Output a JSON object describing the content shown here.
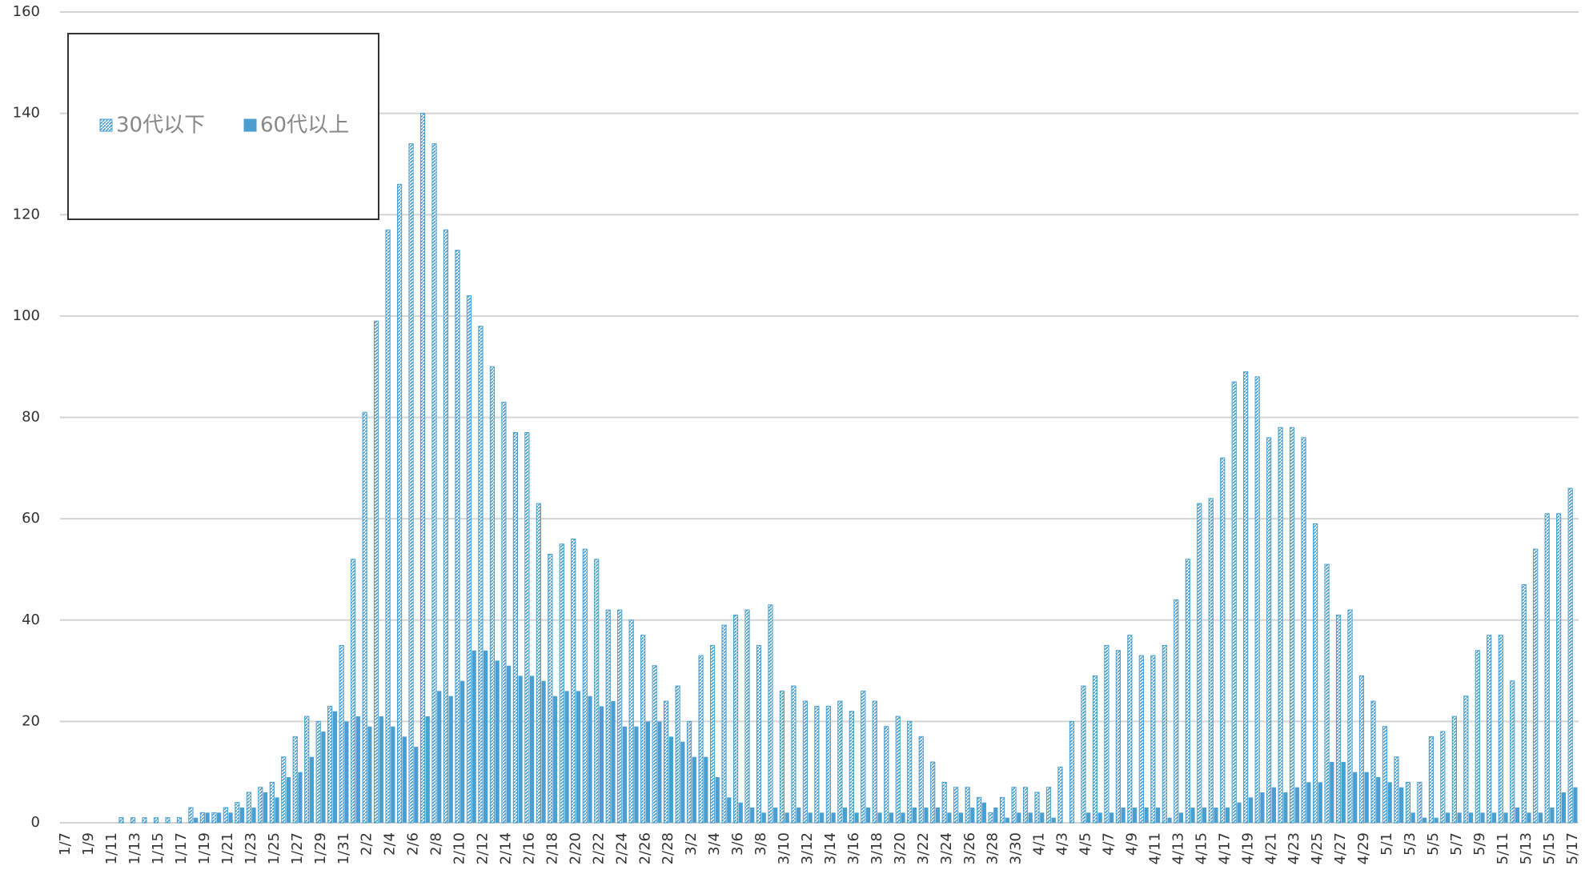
{
  "chart_data": {
    "type": "bar",
    "categories": [
      "1/7",
      null,
      "1/9",
      null,
      "1/11",
      null,
      "1/13",
      null,
      "1/15",
      null,
      "1/17",
      null,
      "1/19",
      null,
      "1/21",
      null,
      "1/23",
      null,
      "1/25",
      null,
      "1/27",
      null,
      "1/29",
      null,
      "1/31",
      null,
      "2/2",
      null,
      "2/4",
      null,
      "2/6",
      null,
      "2/8",
      null,
      "2/10",
      null,
      "2/12",
      null,
      "2/14",
      null,
      "2/16",
      null,
      "2/18",
      null,
      "2/20",
      null,
      "2/22",
      null,
      "2/24",
      null,
      "2/26",
      null,
      "2/28",
      null,
      "3/2",
      null,
      "3/4",
      null,
      "3/6",
      null,
      "3/8",
      null,
      "3/10",
      null,
      "3/12",
      null,
      "3/14",
      null,
      "3/16",
      null,
      "3/18",
      null,
      "3/20",
      null,
      "3/22",
      null,
      "3/24",
      null,
      "3/26",
      null,
      "3/28",
      null,
      "3/30",
      null,
      "4/1",
      null,
      "4/3",
      null,
      "4/5",
      null,
      "4/7",
      null,
      "4/9",
      null,
      "4/11",
      null,
      "4/13",
      null,
      "4/15",
      null,
      "4/17",
      null,
      "4/19",
      null,
      "4/21",
      null,
      "4/23",
      null,
      "4/25",
      null,
      "4/27",
      null,
      "4/29",
      null,
      "5/1",
      null,
      "5/3",
      null,
      "5/5",
      null,
      "5/7",
      null,
      "5/9",
      null,
      "5/11",
      null,
      "5/13",
      null,
      "5/15",
      null,
      "5/17"
    ],
    "series": [
      {
        "name": "30代以下",
        "color": "#4a9fd0",
        "hatch": true,
        "values": [
          0,
          0,
          0,
          0,
          0,
          1,
          1,
          1,
          1,
          1,
          1,
          3,
          2,
          2,
          3,
          4,
          6,
          7,
          8,
          13,
          17,
          21,
          20,
          23,
          35,
          52,
          81,
          99,
          117,
          126,
          134,
          140,
          134,
          117,
          113,
          104,
          98,
          90,
          83,
          77,
          77,
          63,
          53,
          55,
          56,
          54,
          52,
          42,
          42,
          40,
          37,
          31,
          24,
          27,
          20,
          33,
          35,
          39,
          41,
          42,
          35,
          43,
          26,
          27,
          24,
          23,
          23,
          24,
          22,
          26,
          24,
          19,
          21,
          20,
          17,
          12,
          8,
          7,
          7,
          5,
          2,
          5,
          7,
          7,
          6,
          7,
          11,
          20,
          27,
          29,
          35,
          34,
          37,
          33,
          33,
          35,
          44,
          52,
          63,
          64,
          72,
          87,
          89,
          88,
          76,
          78,
          78,
          76,
          59,
          51,
          41,
          42,
          29,
          24,
          19,
          13,
          8,
          8,
          17,
          18,
          21,
          25,
          34,
          37,
          37,
          28,
          47,
          54,
          61,
          61,
          66
        ]
      },
      {
        "name": "60代以上",
        "color": "#4a9fd0",
        "hatch": false,
        "values": [
          0,
          0,
          0,
          0,
          0,
          0,
          0,
          0,
          0,
          0,
          0,
          1,
          2,
          2,
          2,
          3,
          3,
          6,
          5,
          9,
          10,
          13,
          18,
          22,
          20,
          21,
          19,
          21,
          19,
          17,
          15,
          21,
          26,
          25,
          28,
          34,
          34,
          32,
          31,
          29,
          29,
          28,
          25,
          26,
          26,
          25,
          23,
          24,
          19,
          19,
          20,
          20,
          17,
          16,
          13,
          13,
          9,
          5,
          4,
          3,
          2,
          3,
          2,
          3,
          2,
          2,
          2,
          3,
          2,
          3,
          2,
          2,
          2,
          3,
          3,
          3,
          2,
          2,
          3,
          4,
          3,
          1,
          2,
          2,
          2,
          1,
          0,
          0,
          2,
          2,
          2,
          3,
          3,
          3,
          3,
          1,
          2,
          3,
          3,
          3,
          3,
          4,
          5,
          6,
          7,
          6,
          7,
          8,
          8,
          12,
          12,
          10,
          10,
          9,
          8,
          7,
          2,
          1,
          1,
          2,
          2,
          2,
          2,
          2,
          2,
          3,
          2,
          2,
          3,
          6,
          7
        ]
      }
    ],
    "ylim": [
      0,
      160
    ],
    "yticks": [
      0,
      20,
      40,
      60,
      80,
      100,
      120,
      140,
      160
    ],
    "grid": true,
    "legend": "upper left"
  }
}
